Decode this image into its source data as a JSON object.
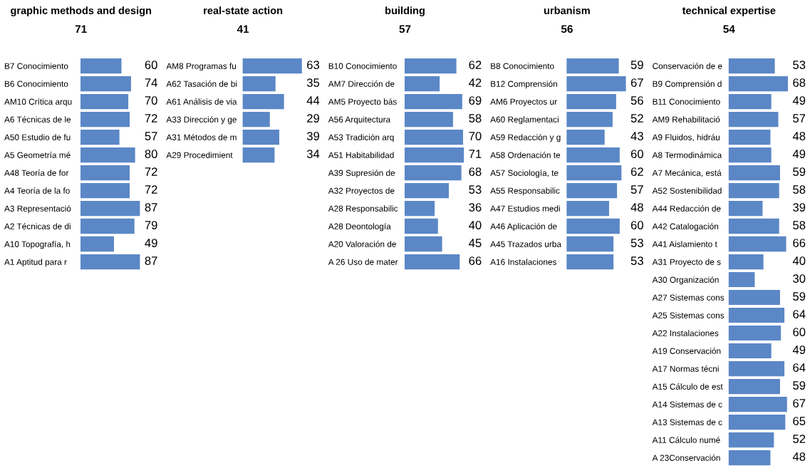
{
  "chart_data": [
    {
      "type": "bar",
      "orientation": "horizontal",
      "title": "graphic methods and design",
      "subtitle": "71",
      "data_labels": true,
      "color": "#5b87c6",
      "categories": [
        "B7 Conocimiento",
        "B6 Conocimiento",
        "AM10 Crítica arqu",
        "A6 Técnicas de le",
        "A50 Estudio de fu",
        "A5 Geometría mé",
        "A48 Teoría de for",
        "A4 Teoría de la fo",
        "A3 Representació",
        "A2 Técnicas de di",
        "A10 Topografía, h",
        "A1 Aptitud para r"
      ],
      "values": [
        60,
        74,
        70,
        72,
        57,
        80,
        72,
        72,
        87,
        79,
        49,
        87
      ]
    },
    {
      "type": "bar",
      "orientation": "horizontal",
      "title": "real-state action",
      "subtitle": "41",
      "data_labels": true,
      "color": "#5b87c6",
      "categories": [
        "AM8 Programas fu",
        "A62 Tasación de bi",
        "A61 Análisis de via",
        "A33 Dirección y ge",
        "A31 Métodos de m",
        "A29 Procedimient"
      ],
      "values": [
        63,
        35,
        44,
        29,
        39,
        34
      ]
    },
    {
      "type": "bar",
      "orientation": "horizontal",
      "title": "building",
      "subtitle": "57",
      "data_labels": true,
      "color": "#5b87c6",
      "categories": [
        "B10 Conocimiento",
        "AM7 Dirección de",
        "AM5 Proyecto bás",
        "A56 Arquitectura",
        "A53 Tradición arq",
        "A51 Habitabilidad",
        "A39 Supresión de",
        "A32 Proyectos de",
        "A28 Responsabilic",
        "A28 Deontología",
        "A20 Valoración de",
        "A 26 Uso de mater"
      ],
      "values": [
        62,
        42,
        69,
        58,
        70,
        71,
        68,
        53,
        36,
        40,
        45,
        66
      ]
    },
    {
      "type": "bar",
      "orientation": "horizontal",
      "title": "urbanism",
      "subtitle": "56",
      "data_labels": true,
      "color": "#5b87c6",
      "categories": [
        "B8 Conocimiento",
        "B12 Comprensión",
        "AM6 Proyectos ur",
        "A60 Reglamentaci",
        "A59 Redacción y g",
        "A58 Ordenación te",
        "A57 Sociología, te",
        "A55 Responsabilic",
        "A47 Estudios medi",
        "A46 Aplicación de",
        "A45 Trazados urba",
        "A16 Instalaciones"
      ],
      "values": [
        59,
        67,
        56,
        52,
        43,
        60,
        62,
        57,
        48,
        60,
        53,
        53
      ]
    },
    {
      "type": "bar",
      "orientation": "horizontal",
      "title": "technical expertise",
      "subtitle": "54",
      "data_labels": true,
      "color": "#5b87c6",
      "categories": [
        "Conservación de e",
        "B9 Comprensión d",
        "B11 Conocimiento",
        "AM9 Rehabilitació",
        "A9 Fluidos, hidráu",
        "A8 Termodinámica",
        "A7 Mecánica, está",
        "A52 Sostenibilidad",
        "A44 Redacción de",
        "A42 Catalogación",
        "A41 Aislamiento t",
        "A31 Proyecto de s",
        "A30 Organización",
        "A27 Sistemas cons",
        "A25 Sistemas cons",
        "A22 Instalaciones",
        "A19 Conservación",
        "A17 Normas técni",
        "A15 Cálculo de est",
        "A14 Sistemas de c",
        "A13 Sistemas de c",
        "A11 Cálculo numé",
        "A 23Conservación"
      ],
      "values": [
        53,
        68,
        49,
        57,
        48,
        49,
        59,
        58,
        39,
        58,
        66,
        40,
        30,
        59,
        64,
        60,
        49,
        64,
        59,
        67,
        65,
        52,
        48
      ]
    }
  ]
}
